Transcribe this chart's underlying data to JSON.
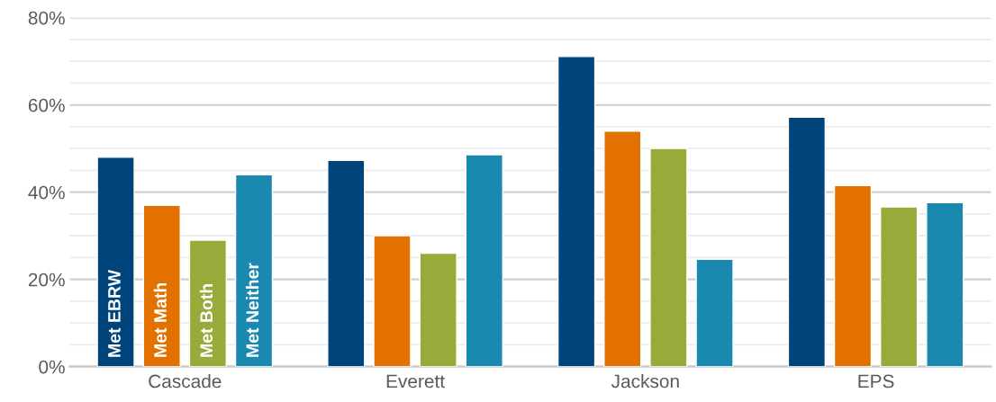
{
  "chart_data": {
    "type": "bar",
    "categories": [
      "Cascade",
      "Everett",
      "Jackson",
      "EPS"
    ],
    "series": [
      {
        "name": "Met EBRW",
        "color": "#00447c",
        "values": [
          48,
          47.3,
          71.1,
          57.2
        ]
      },
      {
        "name": "Met Math",
        "color": "#e37100",
        "values": [
          37,
          30,
          54,
          41.5
        ]
      },
      {
        "name": "Met Both",
        "color": "#97aa3a",
        "values": [
          29,
          26,
          50,
          36.6
        ]
      },
      {
        "name": "Met Neither",
        "color": "#1a89b0",
        "values": [
          44,
          48.6,
          24.6,
          37.6
        ]
      }
    ],
    "ylim": [
      0,
      80
    ],
    "yticks": [
      {
        "value": 0,
        "label": "0%"
      },
      {
        "value": 5,
        "label": null
      },
      {
        "value": 10,
        "label": null
      },
      {
        "value": 15,
        "label": null
      },
      {
        "value": 20,
        "label": "20%"
      },
      {
        "value": 25,
        "label": null
      },
      {
        "value": 30,
        "label": null
      },
      {
        "value": 35,
        "label": null
      },
      {
        "value": 40,
        "label": "40%"
      },
      {
        "value": 45,
        "label": null
      },
      {
        "value": 50,
        "label": null
      },
      {
        "value": 55,
        "label": null
      },
      {
        "value": 60,
        "label": "60%"
      },
      {
        "value": 65,
        "label": null
      },
      {
        "value": 70,
        "label": null
      },
      {
        "value": 75,
        "label": null
      },
      {
        "value": 80,
        "label": "80%"
      }
    ],
    "grid": "y",
    "legend": false
  }
}
